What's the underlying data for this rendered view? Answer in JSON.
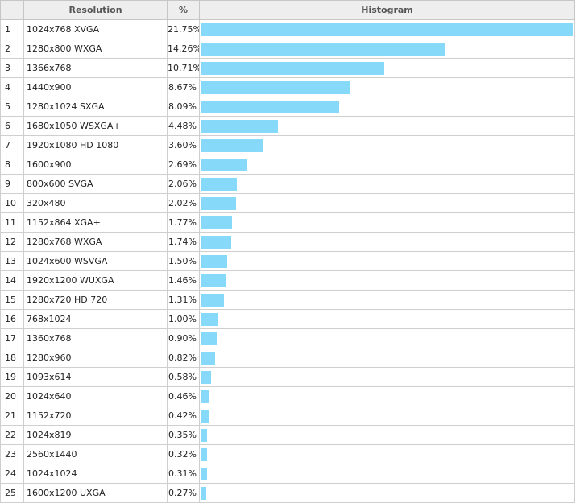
{
  "chart_data": {
    "type": "table",
    "columns": [
      "",
      "Resolution",
      "%",
      "Histogram"
    ],
    "bar_color": "#87d9f9",
    "rows": [
      {
        "rank": "1",
        "resolution": "1024x768 XVGA",
        "percent": "21.75%",
        "value": 21.75
      },
      {
        "rank": "2",
        "resolution": "1280x800 WXGA",
        "percent": "14.26%",
        "value": 14.26
      },
      {
        "rank": "3",
        "resolution": "1366x768",
        "percent": "10.71%",
        "value": 10.71
      },
      {
        "rank": "4",
        "resolution": "1440x900",
        "percent": "8.67%",
        "value": 8.67
      },
      {
        "rank": "5",
        "resolution": "1280x1024 SXGA",
        "percent": "8.09%",
        "value": 8.09
      },
      {
        "rank": "6",
        "resolution": "1680x1050 WSXGA+",
        "percent": "4.48%",
        "value": 4.48
      },
      {
        "rank": "7",
        "resolution": "1920x1080 HD 1080",
        "percent": "3.60%",
        "value": 3.6
      },
      {
        "rank": "8",
        "resolution": "1600x900",
        "percent": "2.69%",
        "value": 2.69
      },
      {
        "rank": "9",
        "resolution": "800x600 SVGA",
        "percent": "2.06%",
        "value": 2.06
      },
      {
        "rank": "10",
        "resolution": "320x480",
        "percent": "2.02%",
        "value": 2.02
      },
      {
        "rank": "11",
        "resolution": "1152x864 XGA+",
        "percent": "1.77%",
        "value": 1.77
      },
      {
        "rank": "12",
        "resolution": "1280x768 WXGA",
        "percent": "1.74%",
        "value": 1.74
      },
      {
        "rank": "13",
        "resolution": "1024x600 WSVGA",
        "percent": "1.50%",
        "value": 1.5
      },
      {
        "rank": "14",
        "resolution": "1920x1200 WUXGA",
        "percent": "1.46%",
        "value": 1.46
      },
      {
        "rank": "15",
        "resolution": "1280x720 HD 720",
        "percent": "1.31%",
        "value": 1.31
      },
      {
        "rank": "16",
        "resolution": "768x1024",
        "percent": "1.00%",
        "value": 1.0
      },
      {
        "rank": "17",
        "resolution": "1360x768",
        "percent": "0.90%",
        "value": 0.9
      },
      {
        "rank": "18",
        "resolution": "1280x960",
        "percent": "0.82%",
        "value": 0.82
      },
      {
        "rank": "19",
        "resolution": "1093x614",
        "percent": "0.58%",
        "value": 0.58
      },
      {
        "rank": "20",
        "resolution": "1024x640",
        "percent": "0.46%",
        "value": 0.46
      },
      {
        "rank": "21",
        "resolution": "1152x720",
        "percent": "0.42%",
        "value": 0.42
      },
      {
        "rank": "22",
        "resolution": "1024x819",
        "percent": "0.35%",
        "value": 0.35
      },
      {
        "rank": "23",
        "resolution": "2560x1440",
        "percent": "0.32%",
        "value": 0.32
      },
      {
        "rank": "24",
        "resolution": "1024x1024",
        "percent": "0.31%",
        "value": 0.31
      },
      {
        "rank": "25",
        "resolution": "1600x1200 UXGA",
        "percent": "0.27%",
        "value": 0.27
      }
    ]
  }
}
